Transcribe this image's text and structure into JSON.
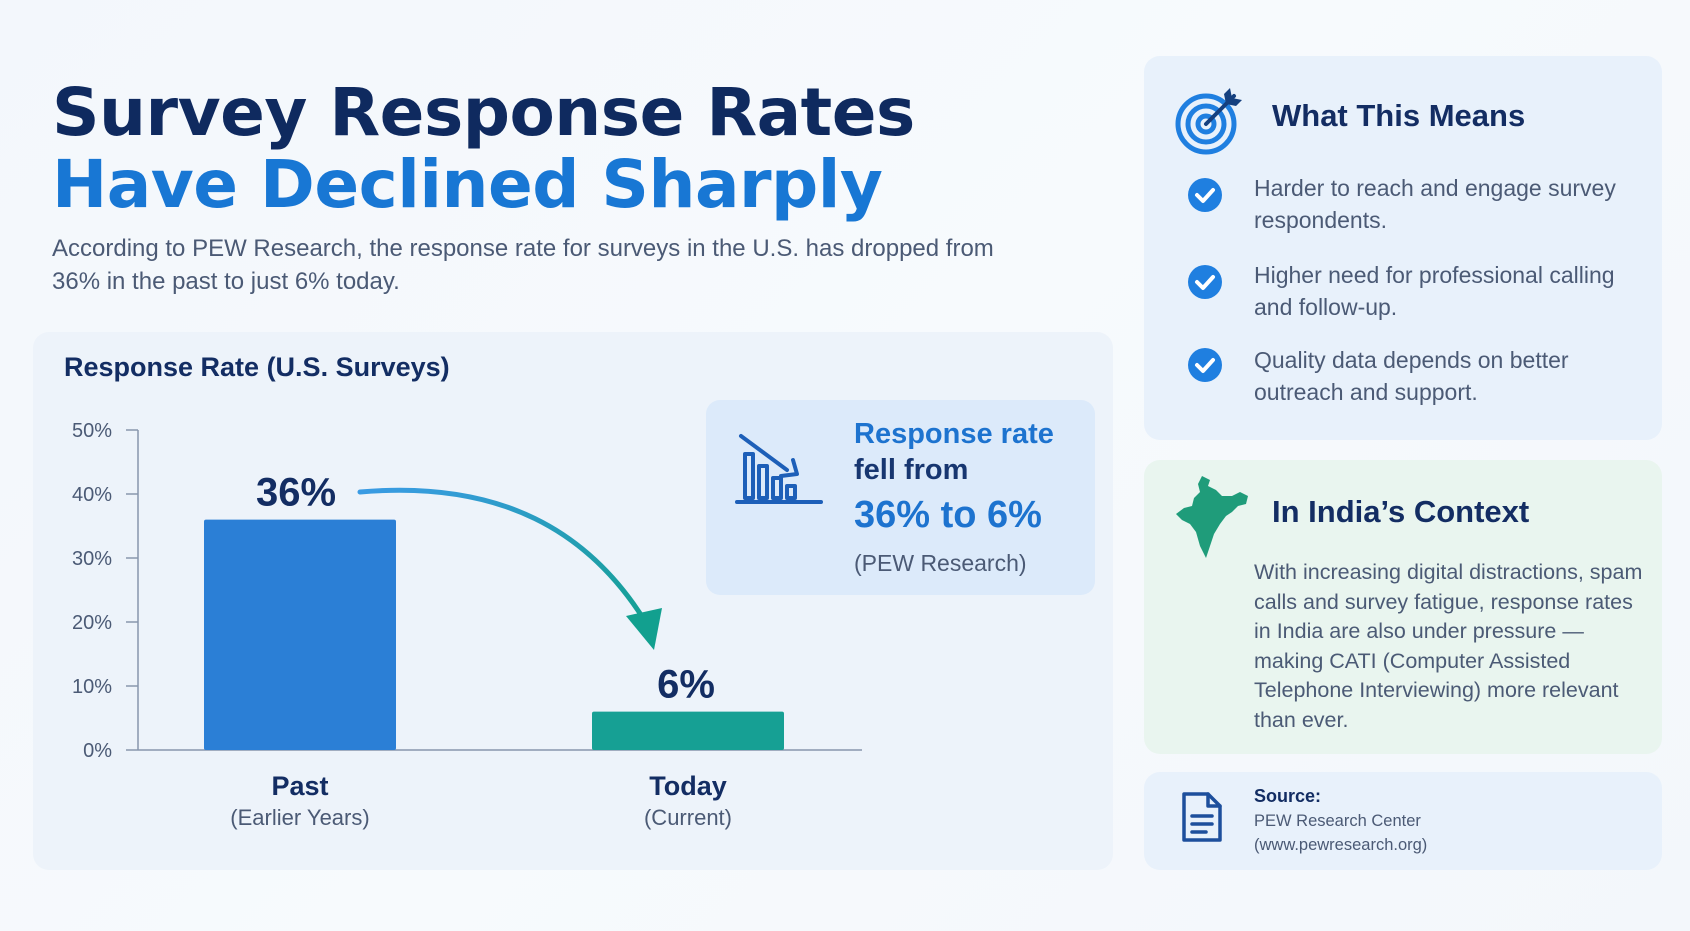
{
  "header": {
    "title_line1": "Survey Response Rates",
    "title_line2": "Have Declined Sharply",
    "subtitle": "According to PEW Research, the response rate for surveys in the U.S. has dropped from 36% in the past to just 6% today."
  },
  "chart_data": {
    "type": "bar",
    "title": "Response Rate (U.S. Surveys)",
    "categories": [
      "Past",
      "Today"
    ],
    "category_sublabels": [
      "(Earlier Years)",
      "(Current)"
    ],
    "values": [
      36,
      6
    ],
    "data_labels": [
      "36%",
      "6%"
    ],
    "ylim": [
      0,
      50
    ],
    "yticks": [
      0,
      10,
      20,
      30,
      40,
      50
    ],
    "ytick_labels": [
      "0%",
      "10%",
      "20%",
      "30%",
      "40%",
      "50%"
    ],
    "xlabel": "",
    "ylabel": "",
    "colors": [
      "#2b7fd6",
      "#16a094"
    ],
    "annotation_arrow": "decline from Past to Today",
    "grid": false
  },
  "callout": {
    "line1": "Response rate",
    "line2": "fell from",
    "line3": "36% to 6%",
    "line4": "(PEW Research)",
    "icon": "declining-chart-icon"
  },
  "means": {
    "title": "What This Means",
    "icon": "target-icon",
    "items": [
      "Harder to reach and engage survey respondents.",
      "Higher need for professional calling and follow-up.",
      "Quality data depends on better outreach and support."
    ]
  },
  "india": {
    "title": "In India’s Context",
    "icon": "india-map-icon",
    "text": "With increasing digital distractions, spam calls and survey fatigue, response rates in India are also under pressure — making CATI (Computer Assisted Telephone Interviewing) more relevant than ever."
  },
  "source": {
    "label": "Source:",
    "line1": "PEW Research Center",
    "line2": "(www.pewresearch.org)",
    "icon": "document-icon"
  }
}
